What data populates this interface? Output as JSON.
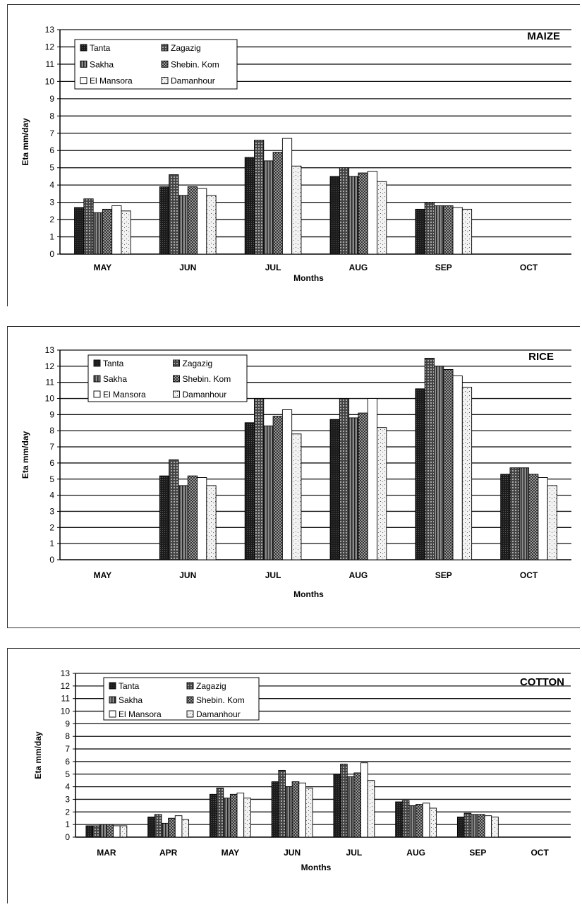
{
  "chart_data": [
    {
      "type": "bar",
      "title": "MAIZE",
      "xlabel": "Months",
      "ylabel": "Eta mm/day",
      "ylim": [
        0,
        13
      ],
      "yticks": [
        0,
        1,
        2,
        3,
        4,
        5,
        6,
        7,
        8,
        9,
        10,
        11,
        12,
        13
      ],
      "grid": true,
      "legend_position": "top-left",
      "categories": [
        "MAY",
        "JUN",
        "JUL",
        "AUG",
        "SEP",
        "OCT"
      ],
      "series": [
        {
          "name": "Tanta",
          "values": [
            2.7,
            3.9,
            5.6,
            4.5,
            2.6,
            null
          ]
        },
        {
          "name": "Zagazig",
          "values": [
            3.2,
            4.6,
            6.6,
            5.0,
            3.0,
            null
          ]
        },
        {
          "name": "Sakha",
          "values": [
            2.4,
            3.4,
            5.4,
            4.5,
            2.8,
            null
          ]
        },
        {
          "name": "Shebin. Kom",
          "values": [
            2.6,
            3.9,
            5.9,
            4.7,
            2.8,
            null
          ]
        },
        {
          "name": "El Mansora",
          "values": [
            2.8,
            3.8,
            6.7,
            4.8,
            2.7,
            null
          ]
        },
        {
          "name": "Damanhour",
          "values": [
            2.5,
            3.4,
            5.1,
            4.2,
            2.6,
            null
          ]
        }
      ]
    },
    {
      "type": "bar",
      "title": "RICE",
      "xlabel": "Months",
      "ylabel": "Eta mm/day",
      "ylim": [
        0,
        13
      ],
      "yticks": [
        0,
        1,
        2,
        3,
        4,
        5,
        6,
        7,
        8,
        9,
        10,
        11,
        12,
        13
      ],
      "grid": true,
      "legend_position": "top-left",
      "categories": [
        "MAY",
        "JUN",
        "JUL",
        "AUG",
        "SEP",
        "OCT"
      ],
      "series": [
        {
          "name": "Tanta",
          "values": [
            null,
            5.2,
            8.5,
            8.7,
            10.6,
            5.3
          ]
        },
        {
          "name": "Zagazig",
          "values": [
            null,
            6.2,
            10.0,
            10.0,
            12.5,
            5.7
          ]
        },
        {
          "name": "Sakha",
          "values": [
            null,
            4.6,
            8.3,
            8.8,
            12.0,
            5.7
          ]
        },
        {
          "name": "Shebin. Kom",
          "values": [
            null,
            5.2,
            8.9,
            9.1,
            11.8,
            5.3
          ]
        },
        {
          "name": "El Mansora",
          "values": [
            null,
            5.1,
            9.3,
            10.0,
            11.4,
            5.1
          ]
        },
        {
          "name": "Damanhour",
          "values": [
            null,
            4.6,
            7.8,
            8.2,
            10.7,
            4.6
          ]
        }
      ]
    },
    {
      "type": "bar",
      "title": "COTTON",
      "xlabel": "Months",
      "ylabel": "Eta mm/day",
      "ylim": [
        0,
        13
      ],
      "yticks": [
        0,
        1,
        2,
        3,
        4,
        5,
        6,
        7,
        8,
        9,
        10,
        11,
        12,
        13
      ],
      "grid": true,
      "legend_position": "top-left",
      "categories": [
        "MAR",
        "APR",
        "MAY",
        "JUN",
        "JUL",
        "AUG",
        "SEP",
        "OCT"
      ],
      "series": [
        {
          "name": "Tanta",
          "values": [
            0.9,
            1.6,
            3.4,
            4.4,
            5.0,
            2.8,
            1.6,
            null
          ]
        },
        {
          "name": "Zagazig",
          "values": [
            0.9,
            1.8,
            3.9,
            5.3,
            5.8,
            2.9,
            1.9,
            null
          ]
        },
        {
          "name": "Sakha",
          "values": [
            1.0,
            1.1,
            3.1,
            4.0,
            4.8,
            2.5,
            1.8,
            null
          ]
        },
        {
          "name": "Shebin. Kom",
          "values": [
            1.0,
            1.5,
            3.4,
            4.4,
            5.1,
            2.6,
            1.8,
            null
          ]
        },
        {
          "name": "El Mansora",
          "values": [
            0.9,
            1.7,
            3.5,
            4.3,
            5.9,
            2.7,
            1.7,
            null
          ]
        },
        {
          "name": "Damanhour",
          "values": [
            0.9,
            1.4,
            3.1,
            3.9,
            4.5,
            2.3,
            1.6,
            null
          ]
        }
      ]
    }
  ]
}
